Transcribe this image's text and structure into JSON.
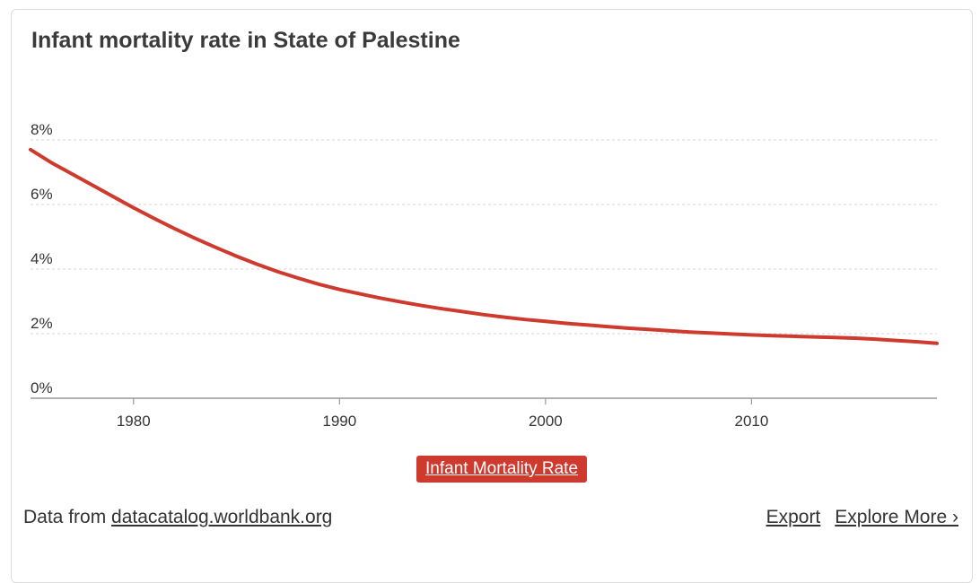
{
  "title": "Infant mortality rate in State of Palestine",
  "chart_data": {
    "type": "line",
    "title": "Infant mortality rate in State of Palestine",
    "xlabel": "",
    "ylabel": "",
    "x_ticks": [
      1980,
      1990,
      2000,
      2010
    ],
    "y_ticks": [
      "0%",
      "2%",
      "4%",
      "6%",
      "8%"
    ],
    "y_tick_values": [
      0,
      2,
      4,
      6,
      8
    ],
    "xlim": [
      1975,
      2019
    ],
    "ylim": [
      0,
      8
    ],
    "grid": true,
    "color": "#cf3a2e",
    "series": [
      {
        "name": "Infant Mortality Rate",
        "x": [
          1975,
          1976,
          1977,
          1978,
          1979,
          1980,
          1981,
          1982,
          1983,
          1984,
          1985,
          1986,
          1987,
          1988,
          1989,
          1990,
          1991,
          1992,
          1993,
          1994,
          1995,
          1996,
          1997,
          1998,
          1999,
          2000,
          2001,
          2002,
          2003,
          2004,
          2005,
          2006,
          2007,
          2008,
          2009,
          2010,
          2011,
          2012,
          2013,
          2014,
          2015,
          2016,
          2017,
          2018,
          2019
        ],
        "y": [
          7.7,
          7.3,
          6.95,
          6.6,
          6.25,
          5.9,
          5.57,
          5.25,
          4.95,
          4.67,
          4.4,
          4.15,
          3.92,
          3.72,
          3.53,
          3.37,
          3.23,
          3.1,
          2.98,
          2.87,
          2.77,
          2.68,
          2.59,
          2.51,
          2.44,
          2.38,
          2.32,
          2.27,
          2.22,
          2.17,
          2.13,
          2.09,
          2.05,
          2.02,
          1.99,
          1.96,
          1.94,
          1.92,
          1.9,
          1.88,
          1.86,
          1.83,
          1.79,
          1.75,
          1.7
        ]
      }
    ]
  },
  "legend": {
    "label": "Infant Mortality Rate"
  },
  "footer": {
    "prefix": "Data from ",
    "source_link": "datacatalog.worldbank.org",
    "export_label": "Export",
    "explore_label": "Explore More ›"
  }
}
